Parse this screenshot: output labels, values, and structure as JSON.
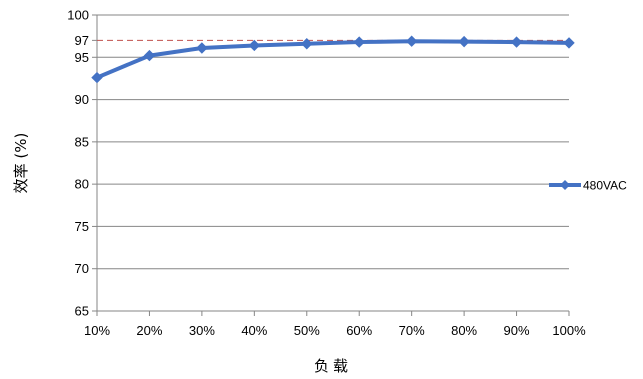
{
  "chart_data": {
    "type": "line",
    "title": "",
    "xlabel": "负载",
    "ylabel": "效率 (%)",
    "categories": [
      "10%",
      "20%",
      "30%",
      "40%",
      "50%",
      "60%",
      "70%",
      "80%",
      "90%",
      "100%"
    ],
    "y_ticks": [
      "65",
      "70",
      "75",
      "80",
      "85",
      "90",
      "95",
      "97",
      "100"
    ],
    "y_tick_values": [
      65,
      70,
      75,
      80,
      85,
      90,
      95,
      97,
      100
    ],
    "ylim": [
      65,
      100
    ],
    "grid": true,
    "legend_position": "right",
    "series": [
      {
        "name": "480VAC",
        "color": "#4472C4",
        "marker": "diamond",
        "values": [
          92.6,
          95.2,
          96.1,
          96.4,
          96.6,
          96.8,
          96.9,
          96.85,
          96.8,
          96.7
        ]
      }
    ],
    "reference_line": {
      "value": 97,
      "color": "#C0504D",
      "style": "dashed"
    }
  }
}
